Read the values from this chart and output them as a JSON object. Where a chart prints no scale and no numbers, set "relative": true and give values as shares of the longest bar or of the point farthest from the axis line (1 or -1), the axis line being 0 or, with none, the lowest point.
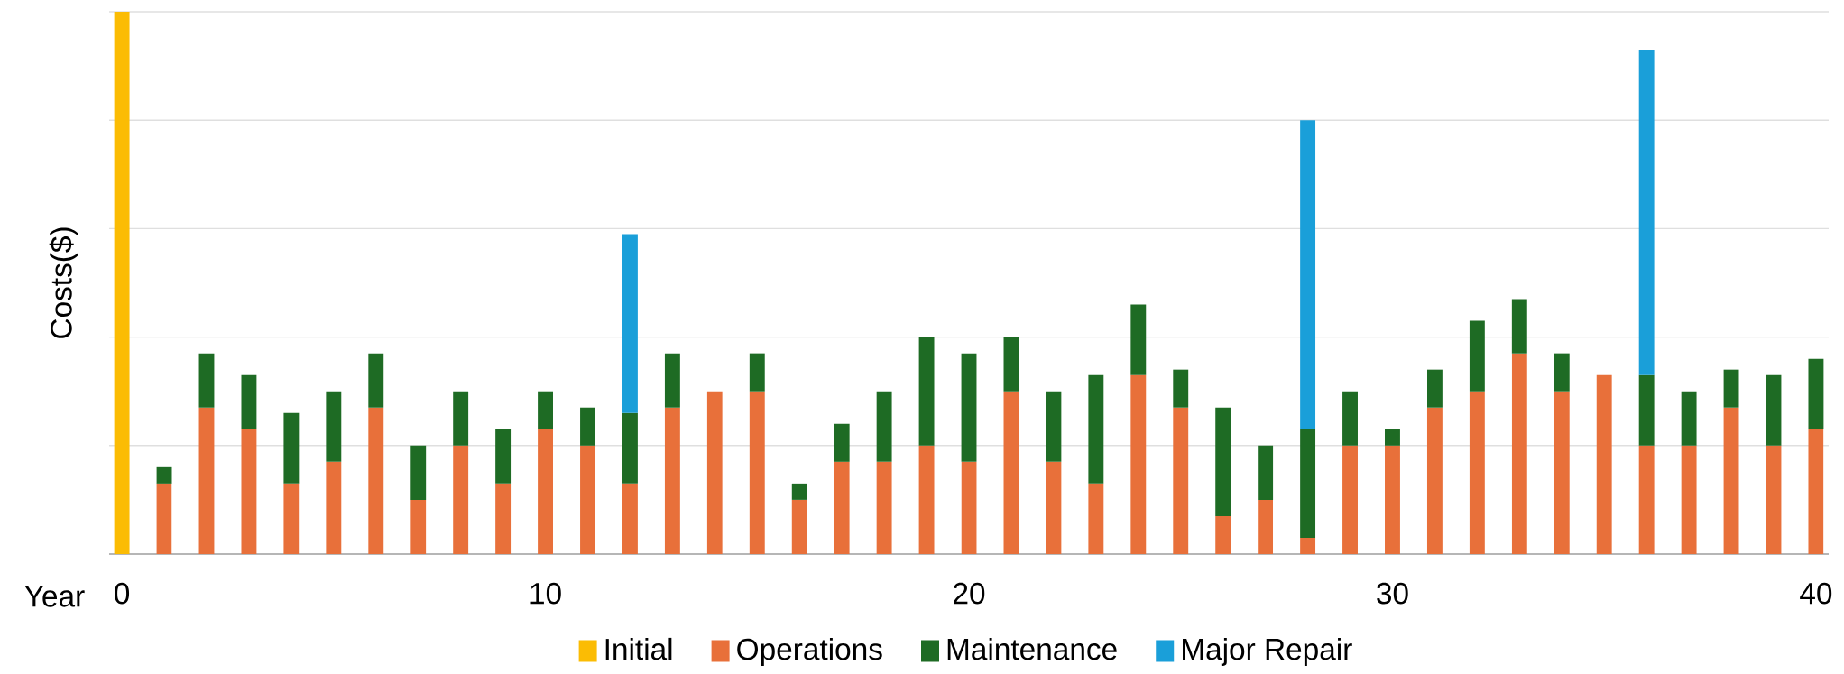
{
  "chart_data": {
    "type": "bar",
    "stacked": true,
    "relative": true,
    "xlabel": "Year",
    "ylabel": "Costs($)",
    "x": [
      0,
      1,
      2,
      3,
      4,
      5,
      6,
      7,
      8,
      9,
      10,
      11,
      12,
      13,
      14,
      15,
      16,
      17,
      18,
      19,
      20,
      21,
      22,
      23,
      24,
      25,
      26,
      27,
      28,
      29,
      30,
      31,
      32,
      33,
      34,
      35,
      36,
      37,
      38,
      39,
      40
    ],
    "xlim": [
      -0.3,
      40.3
    ],
    "xticks": [
      0,
      10,
      20,
      30,
      40
    ],
    "grid": "y",
    "legend": "bottom",
    "series": [
      {
        "name": "Initial",
        "color": "#fbbc04",
        "values": [
          1,
          null,
          null,
          null,
          null,
          null,
          null,
          null,
          null,
          null,
          null,
          null,
          null,
          null,
          null,
          null,
          null,
          null,
          null,
          null,
          null,
          null,
          null,
          null,
          null,
          null,
          null,
          null,
          null,
          null,
          null,
          null,
          null,
          null,
          null,
          null,
          null,
          null,
          null,
          null,
          null
        ]
      },
      {
        "name": "Operations",
        "color": "#e8703a",
        "values": [
          null,
          0.13,
          0.27,
          0.23,
          0.13,
          0.17,
          0.27,
          0.1,
          0.2,
          0.13,
          0.23,
          0.2,
          0.13,
          0.27,
          0.3,
          0.3,
          0.1,
          0.17,
          0.17,
          0.2,
          0.17,
          0.3,
          0.17,
          0.13,
          0.33,
          0.27,
          0.07,
          0.1,
          0.03,
          0.2,
          0.2,
          0.27,
          0.3,
          0.37,
          0.3,
          0.33,
          0.2,
          0.2,
          0.27,
          0.2,
          0.23
        ]
      },
      {
        "name": "Maintenance",
        "color": "#1e6b24",
        "values": [
          null,
          0.03,
          0.1,
          0.1,
          0.13,
          0.13,
          0.1,
          0.1,
          0.1,
          0.1,
          0.07,
          0.07,
          0.13,
          0.1,
          null,
          0.07,
          0.03,
          0.07,
          0.13,
          0.2,
          0.2,
          0.1,
          0.13,
          0.2,
          0.13,
          0.07,
          0.2,
          0.1,
          0.2,
          0.1,
          0.03,
          0.07,
          0.13,
          0.1,
          0.07,
          null,
          0.13,
          0.1,
          0.07,
          0.13,
          0.13
        ]
      },
      {
        "name": "Major Repair",
        "color": "#1a9fd9",
        "values": [
          null,
          null,
          null,
          null,
          null,
          null,
          null,
          null,
          null,
          null,
          null,
          null,
          0.33,
          null,
          null,
          null,
          null,
          null,
          null,
          null,
          null,
          null,
          null,
          null,
          null,
          null,
          null,
          null,
          0.57,
          null,
          null,
          null,
          null,
          null,
          null,
          null,
          0.6,
          null,
          null,
          null,
          null
        ]
      }
    ]
  }
}
